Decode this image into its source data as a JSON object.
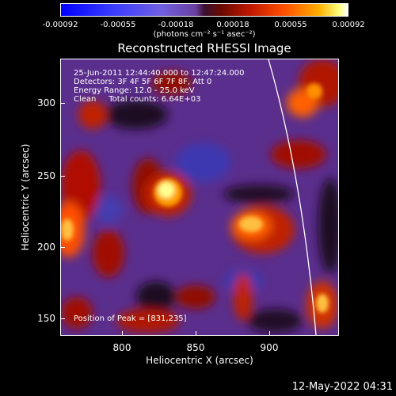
{
  "colorbar": {
    "ticks": [
      "-0.00092",
      "-0.00055",
      "-0.00018",
      "0.00018",
      "0.00055",
      "0.00092"
    ],
    "unit": "(photons cm⁻² s⁻¹ asec⁻²)"
  },
  "title": "Reconstructed RHESSI Image",
  "info": {
    "time": "25-Jun-2011 12:44:40.000 to 12:47:24.000",
    "detectors": "Detectors: 3F 4F 5F 6F 7F 8F, Att 0",
    "energy": "Energy Range: 12.0 - 25.0 keV",
    "clean": "Clean     Total counts: 6.64E+03",
    "peak": "Position of Peak = [831,235]"
  },
  "axes": {
    "xlabel": "Heliocentric X (arcsec)",
    "ylabel": "Heliocentric Y (arcsec)",
    "xticks": [
      "800",
      "850",
      "900"
    ],
    "yticks": [
      "300",
      "250",
      "200",
      "150"
    ],
    "xlim": [
      758,
      944
    ],
    "ylim": [
      136,
      334
    ]
  },
  "datestamp": "12-May-2022 04:31"
}
